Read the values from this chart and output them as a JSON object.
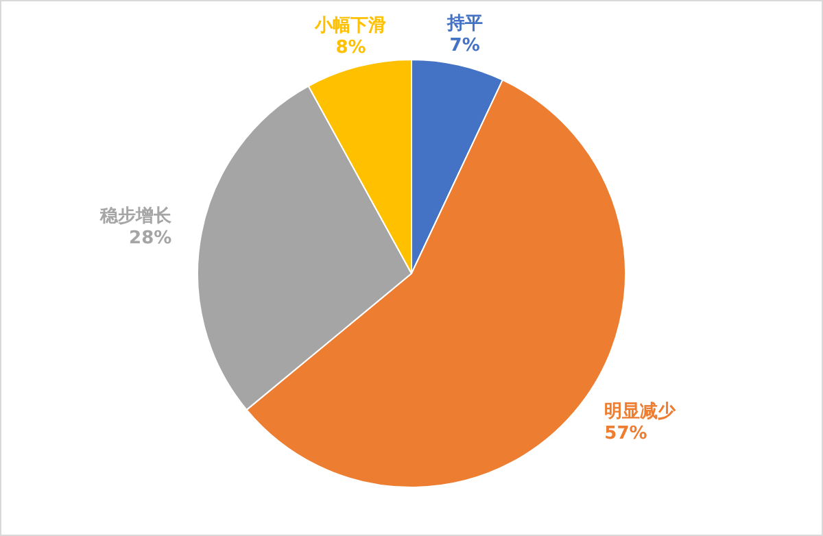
{
  "chart_data": {
    "type": "pie",
    "categories": [
      "持平",
      "明显减少",
      "稳步增长",
      "小幅下滑"
    ],
    "values": [
      7,
      57,
      28,
      8
    ],
    "colors": [
      "#4472c4",
      "#ed7d31",
      "#a5a5a5",
      "#ffc000"
    ],
    "value_labels": [
      "7%",
      "57%",
      "28%",
      "8%"
    ],
    "legend": false
  }
}
